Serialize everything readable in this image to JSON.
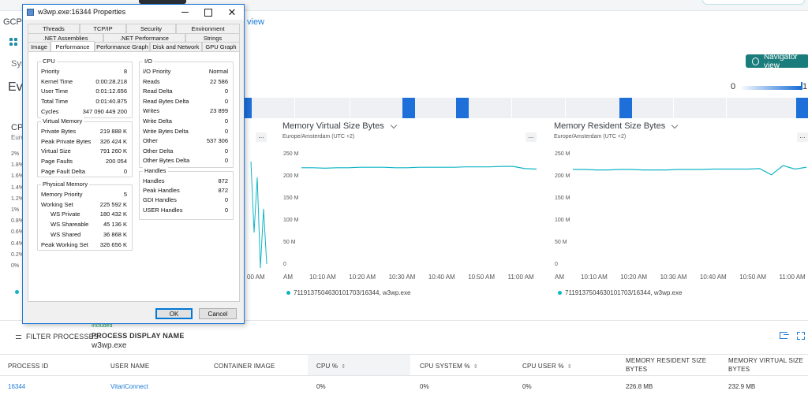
{
  "background": {
    "breadcrumb_left": "GCP",
    "breadcrumb_link": "view",
    "sys_label": "Sys",
    "section_title": "Eve",
    "navigator_button": "Navigator view",
    "legend_min": "0",
    "legend_max": "1",
    "cpu_panel": {
      "title": "CP",
      "subtitle": "Euro",
      "yticks": [
        "2%",
        "1.8%",
        "1.6%",
        "1.4%",
        "1.2%",
        "1%",
        "0.8%",
        "0.6%",
        "0.4%",
        "0.2%",
        "0%"
      ],
      "x_tail": "00 AM"
    },
    "charts": [
      {
        "title": "Memory Virtual Size Bytes",
        "subtitle": "Europe/Amsterdam (UTC +2)",
        "more": "...",
        "yticks": [
          "250 M",
          "200 M",
          "150 M",
          "100 M",
          "50 M",
          "0"
        ],
        "xticks": [
          "AM",
          "10:10 AM",
          "10:20 AM",
          "10:30 AM",
          "10:40 AM",
          "10:50 AM",
          "11:00 AM"
        ],
        "legend": "7119137504630101703/16344, w3wp.exe"
      },
      {
        "title": "Memory Resident Size Bytes",
        "subtitle": "Europe/Amsterdam (UTC +2)",
        "more": "...",
        "yticks": [
          "250 M",
          "200 M",
          "150 M",
          "100 M",
          "50 M",
          "0"
        ],
        "xticks": [
          "AM",
          "10:10 AM",
          "10:20 AM",
          "10:30 AM",
          "10:40 AM",
          "10:50 AM",
          "11:00 AM"
        ],
        "legend": "7119137504630101703/16344, w3wp.exe"
      }
    ],
    "filter": {
      "button": "FILTER PROCESSES",
      "included": "Included",
      "field_label": "PROCESS DISPLAY NAME",
      "field_value": "w3wp.exe"
    },
    "table": {
      "headers": [
        "PROCESS ID",
        "USER NAME",
        "CONTAINER IMAGE",
        "CPU %",
        "CPU SYSTEM %",
        "CPU USER %",
        "MEMORY RESIDENT SIZE BYTES",
        "MEMORY VIRTUAL SIZE BYTES"
      ],
      "header_lines": {
        "mem_res_1": "MEMORY RESIDENT SIZE",
        "mem_res_2": "BYTES",
        "mem_virt_1": "MEMORY VIRTUAL SIZE",
        "mem_virt_2": "BYTES"
      },
      "rows": [
        {
          "pid": "16344",
          "user": "VitariConnect",
          "container": "",
          "cpu": "0%",
          "cpu_sys": "0%",
          "cpu_user": "0%",
          "mem_res": "226.8 MB",
          "mem_virt": "232.9 MB"
        }
      ]
    }
  },
  "dialog": {
    "title": "w3wp.exe:16344 Properties",
    "tabs_row1": [
      "Threads",
      "TCP/IP",
      "Security",
      "Environment"
    ],
    "tabs_row2": [
      ".NET Assemblies",
      ".NET Performance",
      "Strings"
    ],
    "tabs_row3": [
      "Image",
      "Performance",
      "Performance Graph",
      "Disk and Network",
      "GPU Graph"
    ],
    "active_tab": "Performance",
    "cpu": {
      "title": "CPU",
      "rows": [
        {
          "label": "Priority",
          "value": "8"
        },
        {
          "label": "Kernel Time",
          "value": "0:00:28.218"
        },
        {
          "label": "User Time",
          "value": "0:01:12.656"
        },
        {
          "label": "Total Time",
          "value": "0:01:40.875"
        },
        {
          "label": "Cycles",
          "value": "347 090 449 200"
        }
      ]
    },
    "virtual_memory": {
      "title": "Virtual Memory",
      "rows": [
        {
          "label": "Private Bytes",
          "value": "219 888 K"
        },
        {
          "label": "Peak Private Bytes",
          "value": "326 424 K"
        },
        {
          "label": "Virtual Size",
          "value": "791 260 K"
        },
        {
          "label": "Page Faults",
          "value": "200 054"
        },
        {
          "label": "Page Fault Delta",
          "value": "0"
        }
      ]
    },
    "physical_memory": {
      "title": "Physical Memory",
      "rows": [
        {
          "label": "Memory Priority",
          "value": "5"
        },
        {
          "label": "Working Set",
          "value": "225 592 K"
        },
        {
          "label": "WS Private",
          "value": "180 432 K"
        },
        {
          "label": "WS Shareable",
          "value": "45 136 K"
        },
        {
          "label": "WS Shared",
          "value": "36 868 K"
        },
        {
          "label": "Peak Working Set",
          "value": "326 656 K"
        }
      ]
    },
    "io": {
      "title": "I/O",
      "rows": [
        {
          "label": "I/O Priority",
          "value": "Normal"
        },
        {
          "label": "Reads",
          "value": "22 586"
        },
        {
          "label": "Read Delta",
          "value": "0"
        },
        {
          "label": "Read Bytes Delta",
          "value": "0"
        },
        {
          "label": "Writes",
          "value": "23 899"
        },
        {
          "label": "Write Delta",
          "value": "0"
        },
        {
          "label": "Write Bytes Delta",
          "value": "0"
        },
        {
          "label": "Other",
          "value": "537 306"
        },
        {
          "label": "Other Delta",
          "value": "0"
        },
        {
          "label": "Other Bytes Delta",
          "value": "0"
        }
      ]
    },
    "handles": {
      "title": "Handles",
      "rows": [
        {
          "label": "Handles",
          "value": "872"
        },
        {
          "label": "Peak Handles",
          "value": "872"
        },
        {
          "label": "GDI Handles",
          "value": "0"
        },
        {
          "label": "USER Handles",
          "value": "0"
        }
      ]
    },
    "ok_button": "OK",
    "cancel_button": "Cancel"
  }
}
